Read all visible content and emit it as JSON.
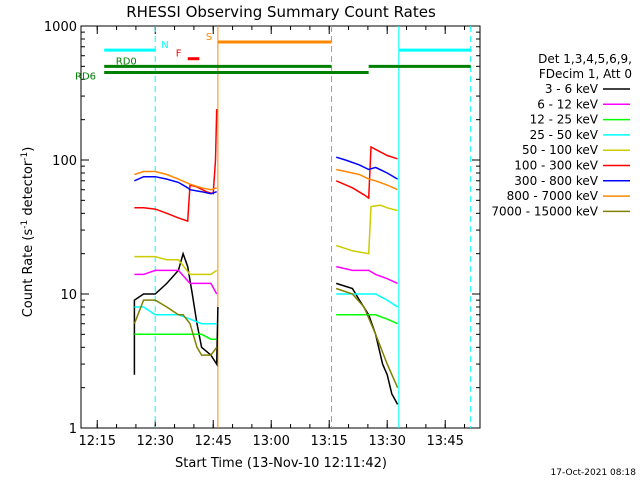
{
  "chart_data": {
    "type": "line",
    "title": "RHESSI Observing Summary Count Rates",
    "xlabel": "Start Time (13-Nov-10 12:11:42)",
    "ylabel_main": "Count Rate (s",
    "ylabel_sup1": "-1",
    "ylabel_mid": " detector",
    "ylabel_sup2": "-1",
    "ylabel_end": ")",
    "y_scale": "log",
    "xlim_min": [
      12.28,
      13.9
    ],
    "ylim": [
      1,
      1000
    ],
    "x_ticks": [
      {
        "v": 12.25,
        "label": "12:15"
      },
      {
        "v": 12.5,
        "label": "12:30"
      },
      {
        "v": 12.75,
        "label": "12:45"
      },
      {
        "v": 13.0,
        "label": "13:00"
      },
      {
        "v": 13.25,
        "label": "13:15"
      },
      {
        "v": 13.5,
        "label": "13:30"
      },
      {
        "v": 13.75,
        "label": "13:45"
      }
    ],
    "y_ticks": [
      {
        "v": 1,
        "label": "1"
      },
      {
        "v": 10,
        "label": "10"
      },
      {
        "v": 100,
        "label": "100"
      },
      {
        "v": 1000,
        "label": "1000"
      }
    ],
    "legend_header": [
      "Det 1,3,4,5,6,9,",
      "FDecim 1, Att 0"
    ],
    "legend_position": "right",
    "series": [
      {
        "name": "3 - 6 keV",
        "color": "#000000",
        "points": [
          [
            12.41,
            2.5
          ],
          [
            12.41,
            9
          ],
          [
            12.45,
            10
          ],
          [
            12.5,
            10
          ],
          [
            12.55,
            12
          ],
          [
            12.6,
            15
          ],
          [
            12.62,
            20
          ],
          [
            12.64,
            16
          ],
          [
            12.66,
            10
          ],
          [
            12.68,
            6
          ],
          [
            12.7,
            4
          ],
          [
            12.74,
            3.5
          ],
          [
            12.765,
            3
          ],
          [
            12.77,
            8
          ],
          [
            13.28,
            12
          ],
          [
            13.35,
            11
          ],
          [
            13.38,
            9
          ],
          [
            13.42,
            7
          ],
          [
            13.45,
            5
          ],
          [
            13.48,
            3
          ],
          [
            13.5,
            2.5
          ],
          [
            13.52,
            1.8
          ],
          [
            13.545,
            1.5
          ]
        ]
      },
      {
        "name": "6 - 12 keV",
        "color": "#ff00ff",
        "points": [
          [
            12.41,
            14
          ],
          [
            12.45,
            14
          ],
          [
            12.5,
            15
          ],
          [
            12.55,
            15
          ],
          [
            12.6,
            15
          ],
          [
            12.65,
            12
          ],
          [
            12.7,
            12
          ],
          [
            12.74,
            12
          ],
          [
            12.765,
            10
          ],
          [
            13.28,
            16
          ],
          [
            13.35,
            15
          ],
          [
            13.42,
            15
          ],
          [
            13.45,
            14
          ],
          [
            13.5,
            13
          ],
          [
            13.545,
            12
          ]
        ]
      },
      {
        "name": "12 - 25 keV",
        "color": "#00ff00",
        "points": [
          [
            12.41,
            5
          ],
          [
            12.45,
            5
          ],
          [
            12.5,
            5
          ],
          [
            12.55,
            5
          ],
          [
            12.6,
            5
          ],
          [
            12.65,
            5
          ],
          [
            12.7,
            5
          ],
          [
            12.74,
            4.6
          ],
          [
            12.765,
            4.6
          ],
          [
            13.28,
            7
          ],
          [
            13.35,
            7
          ],
          [
            13.42,
            7
          ],
          [
            13.45,
            7
          ],
          [
            13.5,
            6.5
          ],
          [
            13.545,
            6
          ]
        ]
      },
      {
        "name": "25 - 50 keV",
        "color": "#00ffff",
        "points": [
          [
            12.41,
            8
          ],
          [
            12.45,
            8
          ],
          [
            12.5,
            7
          ],
          [
            12.55,
            7
          ],
          [
            12.6,
            7
          ],
          [
            12.65,
            6.5
          ],
          [
            12.7,
            6
          ],
          [
            12.74,
            6
          ],
          [
            12.765,
            6
          ],
          [
            13.28,
            10
          ],
          [
            13.35,
            10
          ],
          [
            13.42,
            10
          ],
          [
            13.45,
            10
          ],
          [
            13.5,
            9
          ],
          [
            13.545,
            8
          ]
        ]
      },
      {
        "name": "50 - 100 keV",
        "color": "#cccc00",
        "points": [
          [
            12.41,
            19
          ],
          [
            12.45,
            19
          ],
          [
            12.5,
            19
          ],
          [
            12.55,
            18
          ],
          [
            12.6,
            18
          ],
          [
            12.65,
            14
          ],
          [
            12.7,
            14
          ],
          [
            12.74,
            14
          ],
          [
            12.765,
            15
          ],
          [
            13.28,
            23
          ],
          [
            13.35,
            21
          ],
          [
            13.42,
            20
          ],
          [
            13.43,
            45
          ],
          [
            13.47,
            46
          ],
          [
            13.5,
            44
          ],
          [
            13.545,
            42
          ]
        ]
      },
      {
        "name": "100 - 300 keV",
        "color": "#ff0000",
        "points": [
          [
            12.41,
            44
          ],
          [
            12.45,
            44
          ],
          [
            12.5,
            43
          ],
          [
            12.55,
            40
          ],
          [
            12.6,
            37
          ],
          [
            12.64,
            35
          ],
          [
            12.65,
            65
          ],
          [
            12.68,
            63
          ],
          [
            12.72,
            58
          ],
          [
            12.75,
            56
          ],
          [
            12.76,
            100
          ],
          [
            12.765,
            240
          ],
          [
            13.28,
            70
          ],
          [
            13.35,
            62
          ],
          [
            13.4,
            55
          ],
          [
            13.42,
            52
          ],
          [
            13.43,
            125
          ],
          [
            13.47,
            115
          ],
          [
            13.5,
            108
          ],
          [
            13.545,
            102
          ]
        ]
      },
      {
        "name": "300 - 800 keV",
        "color": "#0000ff",
        "points": [
          [
            12.41,
            70
          ],
          [
            12.45,
            75
          ],
          [
            12.5,
            75
          ],
          [
            12.55,
            72
          ],
          [
            12.6,
            68
          ],
          [
            12.64,
            62
          ],
          [
            12.65,
            60
          ],
          [
            12.7,
            58
          ],
          [
            12.74,
            56
          ],
          [
            12.765,
            58
          ],
          [
            13.28,
            105
          ],
          [
            13.32,
            100
          ],
          [
            13.38,
            92
          ],
          [
            13.42,
            85
          ],
          [
            13.45,
            88
          ],
          [
            13.5,
            80
          ],
          [
            13.545,
            72
          ]
        ]
      },
      {
        "name": "800 - 7000 keV",
        "color": "#ff8800",
        "points": [
          [
            12.41,
            78
          ],
          [
            12.45,
            82
          ],
          [
            12.5,
            82
          ],
          [
            12.55,
            78
          ],
          [
            12.6,
            72
          ],
          [
            12.65,
            66
          ],
          [
            12.7,
            62
          ],
          [
            12.74,
            60
          ],
          [
            12.765,
            62
          ],
          [
            13.28,
            85
          ],
          [
            13.32,
            82
          ],
          [
            13.38,
            78
          ],
          [
            13.42,
            72
          ],
          [
            13.45,
            70
          ],
          [
            13.5,
            65
          ],
          [
            13.545,
            60
          ]
        ]
      },
      {
        "name": "7000 - 15000 keV",
        "color": "#808000",
        "points": [
          [
            12.41,
            6
          ],
          [
            12.45,
            9
          ],
          [
            12.5,
            9
          ],
          [
            12.55,
            8
          ],
          [
            12.6,
            7
          ],
          [
            12.62,
            7
          ],
          [
            12.65,
            6
          ],
          [
            12.68,
            4
          ],
          [
            12.7,
            3.5
          ],
          [
            12.74,
            3.5
          ],
          [
            12.765,
            4
          ],
          [
            13.28,
            11
          ],
          [
            13.35,
            10
          ],
          [
            13.4,
            8
          ],
          [
            13.45,
            5
          ],
          [
            13.5,
            3
          ],
          [
            13.545,
            2
          ]
        ]
      }
    ],
    "state_bars": [
      {
        "label": "N",
        "color": "#00ffff",
        "y": 660,
        "segments": [
          [
            12.28,
            12.5
          ],
          [
            13.55,
            13.86
          ]
        ]
      },
      {
        "label": "F",
        "color": "#ff0000",
        "y": 570,
        "segments": [
          [
            12.64,
            12.69
          ]
        ]
      },
      {
        "label": "S",
        "color": "#ff8800",
        "y": 760,
        "segments": [
          [
            12.77,
            13.26
          ]
        ]
      },
      {
        "label": "RD0",
        "color": "#008000",
        "y": 500,
        "segments": [
          [
            12.28,
            13.26
          ],
          [
            13.42,
            13.86
          ]
        ]
      },
      {
        "label": "RD6",
        "color": "#008000",
        "y": 450,
        "segments": [
          [
            12.28,
            13.26
          ],
          [
            13.26,
            13.42
          ]
        ]
      }
    ],
    "v_lines": [
      {
        "x": 12.5,
        "color": "#00ffff",
        "dash": true
      },
      {
        "x": 12.77,
        "color": "#ff8800",
        "dash": false
      },
      {
        "x": 13.26,
        "color": "#ff8800",
        "dash": true
      },
      {
        "x": 13.55,
        "color": "#00ffff",
        "dash": false
      },
      {
        "x": 13.86,
        "color": "#00ffff",
        "dash": true
      }
    ],
    "footer_timestamp": "17-Oct-2021 08:18"
  }
}
